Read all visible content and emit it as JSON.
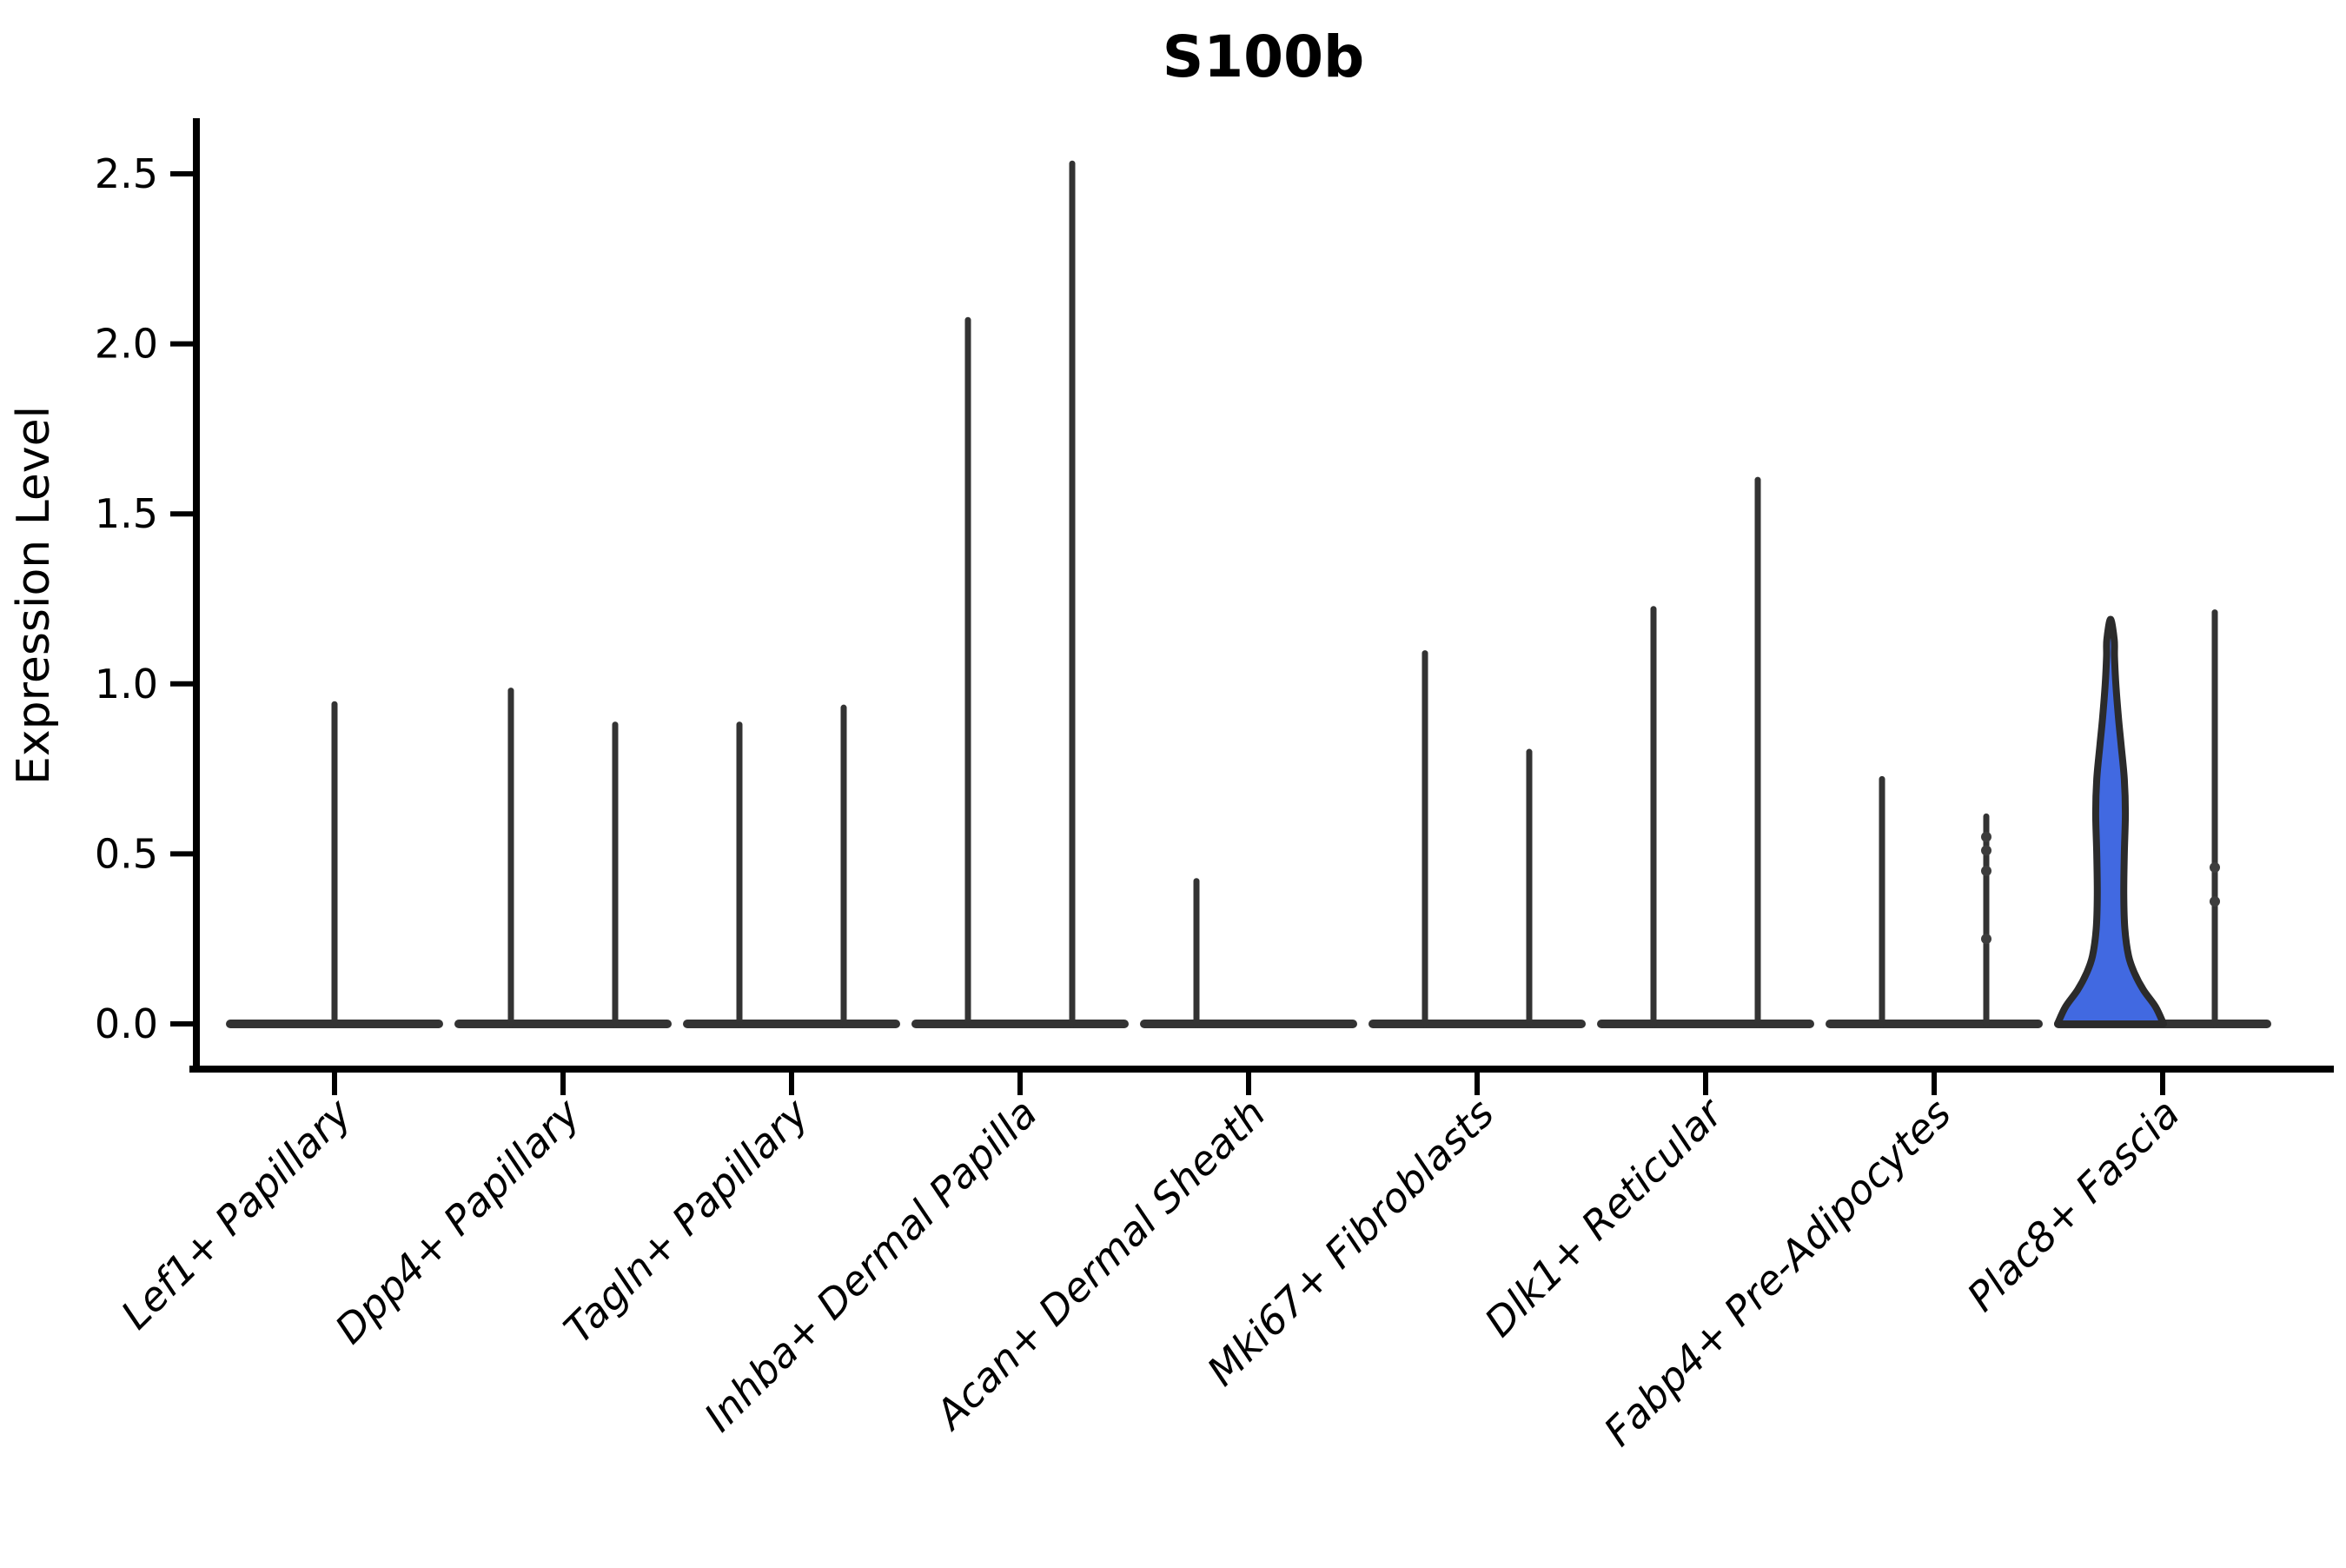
{
  "chart_data": {
    "type": "violin",
    "title": "S100b",
    "xlabel": "",
    "ylabel": "Expression Level",
    "ylim": [
      -0.13,
      2.68
    ],
    "yticks": [
      0.0,
      0.5,
      1.0,
      1.5,
      2.0,
      2.5
    ],
    "ytick_labels": [
      "0.0",
      "0.5",
      "1.0",
      "1.5",
      "2.0",
      "2.5"
    ],
    "grid": "off",
    "legend": "none",
    "categories": [
      "Lef1+ Papillary",
      "Dpp4+ Papillary",
      "Tagln+ Papillary",
      "Inhba+ Dermal Papilla",
      "Acan+ Dermal Sheath",
      "Mki67+ Fibroblasts",
      "Dlk1+ Reticular",
      "Fabp4+ Pre-Adipocytes",
      "Plac8+ Fascia"
    ],
    "highlighted_category": "Plac8+ Fascia",
    "colors": {
      "default_fill": "#ffffff",
      "highlight_fill": "#4169E1",
      "violin_outline": "#333333",
      "axis": "#000000"
    },
    "groups": [
      {
        "category": "Lef1+ Papillary",
        "violins": [
          {
            "position": "center",
            "width": "full",
            "max": 0.94,
            "fill": "#ffffff"
          }
        ]
      },
      {
        "category": "Dpp4+ Papillary",
        "violins": [
          {
            "position": "left",
            "max": 0.98,
            "fill": "#ffffff"
          },
          {
            "position": "right",
            "max": 0.88,
            "fill": "#ffffff"
          }
        ]
      },
      {
        "category": "Tagln+ Papillary",
        "violins": [
          {
            "position": "left",
            "max": 0.88,
            "fill": "#ffffff"
          },
          {
            "position": "right",
            "max": 0.93,
            "fill": "#ffffff"
          }
        ]
      },
      {
        "category": "Inhba+ Dermal Papilla",
        "violins": [
          {
            "position": "left",
            "max": 2.07,
            "fill": "#ffffff"
          },
          {
            "position": "right",
            "max": 2.53,
            "fill": "#ffffff"
          }
        ]
      },
      {
        "category": "Acan+ Dermal Sheath",
        "violins": [
          {
            "position": "left",
            "max": 0.42,
            "fill": "#ffffff"
          },
          {
            "position": "right",
            "max": 0,
            "fill": "#ffffff"
          }
        ]
      },
      {
        "category": "Mki67+ Fibroblasts",
        "violins": [
          {
            "position": "left",
            "max": 1.09,
            "fill": "#ffffff"
          },
          {
            "position": "right",
            "max": 0.8,
            "fill": "#ffffff"
          }
        ]
      },
      {
        "category": "Dlk1+ Reticular",
        "violins": [
          {
            "position": "left",
            "max": 1.22,
            "fill": "#ffffff"
          },
          {
            "position": "right",
            "max": 1.6,
            "fill": "#ffffff"
          }
        ]
      },
      {
        "category": "Fabp4+ Pre-Adipocytes",
        "violins": [
          {
            "position": "left",
            "max": 0.72,
            "fill": "#ffffff"
          },
          {
            "position": "right",
            "max": 0.61,
            "fill": "#ffffff",
            "dots": [
              0.55,
              0.51,
              0.45,
              0.25
            ]
          }
        ]
      },
      {
        "category": "Plac8+ Fascia",
        "violins": [
          {
            "position": "left",
            "max": 1.19,
            "fill": "#4169E1",
            "shape": "density",
            "profile": [
              [
                0,
                1.0
              ],
              [
                0.05,
                0.85
              ],
              [
                0.1,
                0.62
              ],
              [
                0.15,
                0.45
              ],
              [
                0.2,
                0.34
              ],
              [
                0.28,
                0.27
              ],
              [
                0.38,
                0.25
              ],
              [
                0.5,
                0.26
              ],
              [
                0.62,
                0.28
              ],
              [
                0.72,
                0.26
              ],
              [
                0.82,
                0.2
              ],
              [
                0.9,
                0.15
              ],
              [
                1.0,
                0.1
              ],
              [
                1.08,
                0.075
              ],
              [
                1.13,
                0.07
              ],
              [
                1.19,
                0
              ]
            ]
          },
          {
            "position": "right",
            "max": 1.21,
            "fill": "#ffffff",
            "dots": [
              0.46,
              0.36
            ]
          }
        ]
      }
    ]
  }
}
